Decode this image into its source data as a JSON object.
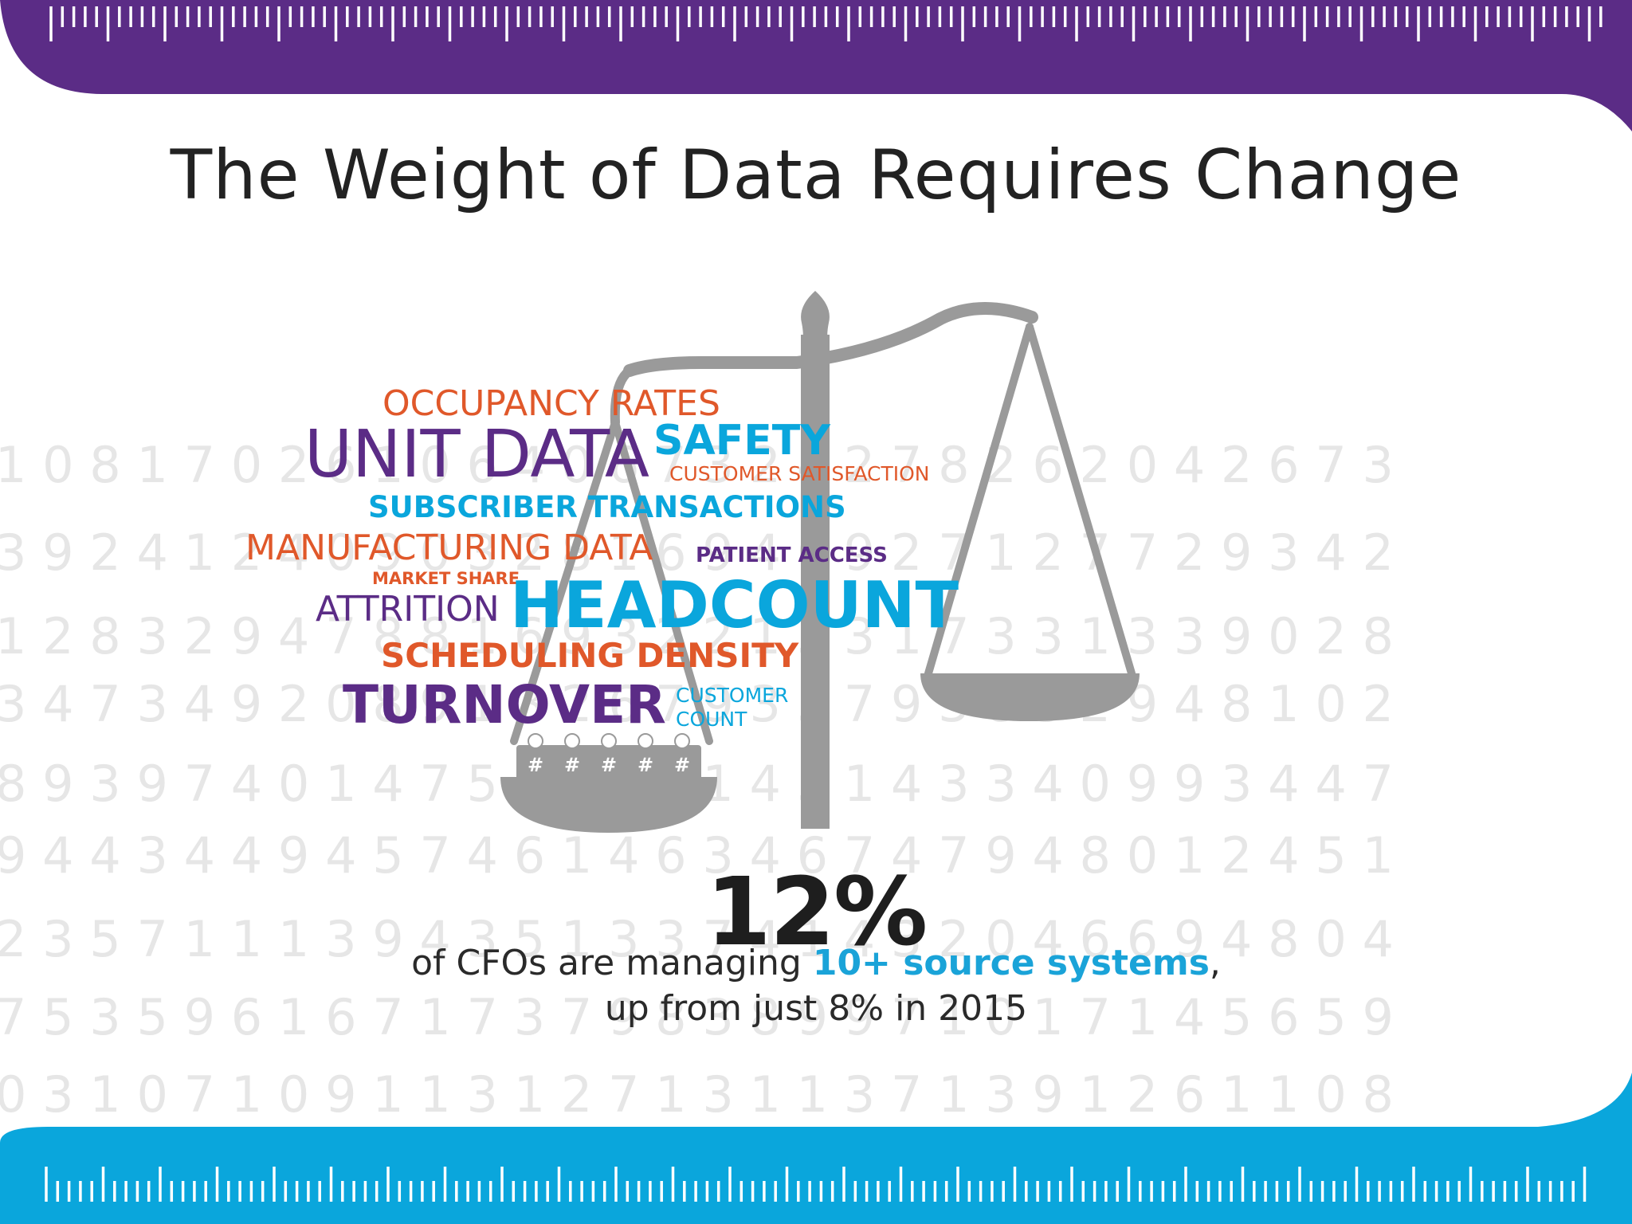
{
  "title": "The Weight of Data Requires Change",
  "colors": {
    "purple": "#5b2c86",
    "blue": "#0aa6dc",
    "orange": "#e0582a",
    "scale_gray": "#9a9a9a",
    "digits_gray": "#e6e6e6"
  },
  "word_cloud": [
    {
      "text": "OCCUPANCY RATES",
      "color": "orange"
    },
    {
      "text": "UNIT DATA",
      "color": "purple"
    },
    {
      "text": "SAFETY",
      "color": "blue"
    },
    {
      "text": "CUSTOMER SATISFACTION",
      "color": "orange"
    },
    {
      "text": "SUBSCRIBER TRANSACTIONS",
      "color": "blue"
    },
    {
      "text": "MANUFACTURING DATA",
      "color": "orange"
    },
    {
      "text": "PATIENT ACCESS",
      "color": "purple"
    },
    {
      "text": "MARKET SHARE",
      "color": "orange"
    },
    {
      "text": "ATTRITION",
      "color": "purple"
    },
    {
      "text": "HEADCOUNT",
      "color": "blue"
    },
    {
      "text": "SCHEDULING DENSITY",
      "color": "orange"
    },
    {
      "text": "TURNOVER",
      "color": "purple"
    },
    {
      "text": "CUSTOMER",
      "color": "blue"
    },
    {
      "text": "COUNT",
      "color": "blue"
    }
  ],
  "pan_tokens": [
    "#",
    "#",
    "#",
    "#",
    "#"
  ],
  "background_digits": [
    "1 0 8 1 7 0 2 6 1 0 6 4 0 6 7 3 2 4 2 7 8 2 6 2 0 4 2 6 7 3",
    "3 9 2 4 1 2 4 0 9 0 3 2 8 1 6 9 4 6 9 2 7 1 2 7 7 2 9 3 4 2",
    "1 2 8 3 2 9 4 7 8 8 1 6 9 3 2 2 1 3 3 1 7 3 3 1 3 3 9 0 2 8",
    "3 4 7 3 4 9 2 0 8 9 1 3 2 6 7 9 3 3 7 9 3 8 3 2 9 4 8 1 0 2",
    "8 9 3 9 7 4 0 1 4 7 5 4 9 4 2 1 4 3 1 4 3 3 4 0 9 9 3 4 4 7",
    "9 4 4 3 4 4 9 4 5 7 4 6 1 4 6 3 4 6 7 4 7 9 4 8 0 1 2 4 5 1",
    "2 3 5 7 1 1 1 3 9 4 3 5 1 3 3 7 4 1 4 3 2 0 4 6 6 9 4 8 0 4",
    "7 5 3 5 9 6 1 6 7 1 7 3 7 9 8 3 8 9 9 7 1 0 1 7 1 4 5 6 5 9",
    "0 3 1 0 7 1 0 9 1 1 3 1 2 7 1 3 1 1 3 7 1 3 9 1 2 6 1 1 0 8"
  ],
  "stat": {
    "value": "12%",
    "line1_before": "of CFOs are managing ",
    "line1_highlight": "10+ source systems",
    "line1_after": ",",
    "line2": "up from just 8% in 2015"
  }
}
